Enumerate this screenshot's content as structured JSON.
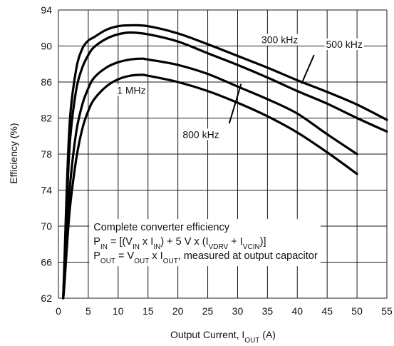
{
  "chart_data": {
    "type": "line",
    "xlabel": {
      "base": "Output Current, I",
      "sub": "OUT",
      "tail": " (A)"
    },
    "ylabel": "Efficiency (%)",
    "xlim": [
      0,
      55
    ],
    "ylim": [
      62,
      94
    ],
    "xticks": [
      0,
      5,
      10,
      15,
      20,
      25,
      30,
      35,
      40,
      45,
      50,
      55
    ],
    "yticks": [
      62,
      66,
      70,
      74,
      78,
      82,
      86,
      90,
      94
    ],
    "grid": true,
    "series": [
      {
        "name": "300 kHz",
        "x": [
          0.8,
          1,
          1.5,
          2,
          3,
          4,
          5,
          6,
          8,
          10,
          12,
          15,
          20,
          25,
          30,
          35,
          40,
          45,
          50,
          55
        ],
        "y": [
          62,
          66,
          76,
          82.5,
          87.5,
          89.7,
          90.6,
          91,
          91.8,
          92.2,
          92.3,
          92.2,
          91.4,
          90.2,
          88.9,
          87.6,
          86.2,
          84.9,
          83.5,
          81.8
        ]
      },
      {
        "name": "500 kHz",
        "x": [
          0.8,
          1,
          1.5,
          2,
          3,
          4,
          5,
          6,
          8,
          10,
          12,
          15,
          20,
          25,
          30,
          35,
          40,
          45,
          50,
          55
        ],
        "y": [
          62,
          65,
          74,
          80,
          85.2,
          87.6,
          89,
          89.9,
          90.8,
          91.3,
          91.5,
          91.3,
          90.5,
          89.2,
          87.9,
          86.5,
          85,
          83.6,
          82,
          80.5
        ]
      },
      {
        "name": "800 kHz",
        "x": [
          0.8,
          1,
          1.5,
          2,
          3,
          4,
          5,
          6,
          8,
          10,
          12,
          14,
          15,
          20,
          25,
          30,
          35,
          40,
          45,
          50
        ],
        "y": [
          62,
          64,
          70,
          75,
          80.5,
          83.5,
          85.3,
          86.5,
          87.6,
          88.2,
          88.5,
          88.6,
          88.5,
          87.9,
          86.9,
          85.5,
          84.1,
          82.5,
          80.2,
          78
        ]
      },
      {
        "name": "1 MHz",
        "x": [
          0.8,
          1,
          1.5,
          2,
          3,
          4,
          5,
          6,
          8,
          10,
          12,
          14,
          15,
          20,
          25,
          30,
          35,
          40,
          45,
          50
        ],
        "y": [
          62,
          63.5,
          68.5,
          72.5,
          77.5,
          80.8,
          82.8,
          84.1,
          85.5,
          86.3,
          86.7,
          86.8,
          86.7,
          86,
          85,
          83.7,
          82.2,
          80.4,
          78.2,
          75.8
        ]
      }
    ],
    "annotations": [
      {
        "label": "300 kHz",
        "text_at": [
          34,
          90.3
        ],
        "points_to": null
      },
      {
        "label": "500 kHz",
        "text_at": [
          44.8,
          89.8
        ],
        "line_from": [
          42.8,
          89.0
        ],
        "line_to": [
          40.7,
          85.8
        ]
      },
      {
        "label": "1 MHz",
        "text_at": [
          9.8,
          84.7
        ],
        "points_to": null
      },
      {
        "label": "800 kHz",
        "text_at": [
          20.8,
          79.8
        ],
        "line_from": [
          28.6,
          81.4
        ],
        "line_to": [
          30.6,
          85.8
        ]
      }
    ],
    "notes": {
      "line1": "Complete converter efficiency",
      "line2": [
        {
          "t": "P"
        },
        {
          "sub": "IN"
        },
        {
          "t": " = [(V"
        },
        {
          "sub": "IN"
        },
        {
          "t": " x I"
        },
        {
          "sub": "IN"
        },
        {
          "t": ") + 5 V x (I"
        },
        {
          "sub": "VDRV"
        },
        {
          "t": " + I"
        },
        {
          "sub": "VCIN"
        },
        {
          "t": ")]"
        }
      ],
      "line3": [
        {
          "t": "P"
        },
        {
          "sub": "OUT"
        },
        {
          "t": " = V"
        },
        {
          "sub": "OUT"
        },
        {
          "t": " x I"
        },
        {
          "sub": "OUT"
        },
        {
          "t": ", measured at output capacitor"
        }
      ]
    }
  }
}
